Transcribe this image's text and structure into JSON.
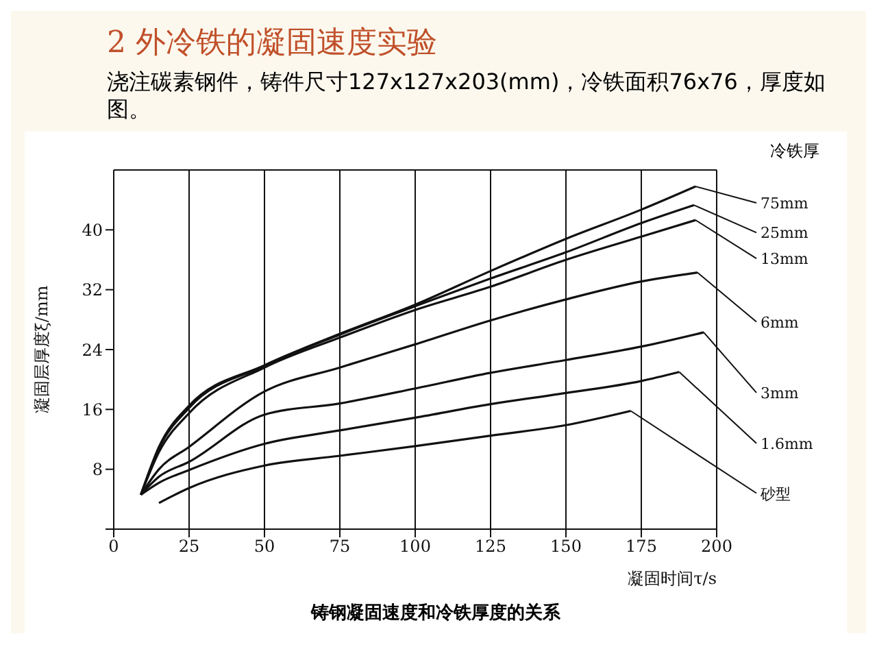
{
  "chart_data": {
    "type": "line",
    "title": "2 外冷铁的凝固速度实验",
    "subtitle": "浇注碳素钢件，铸件尺寸127x127x203(mm)，冷铁面积76x76，厚度如图。",
    "xlabel": "凝固时间τ/s",
    "ylabel": "凝固层厚度ξ/mm",
    "legend_title": "冷铁厚",
    "annotations": [
      "铸钢凝固速度和冷铁厚度的关系"
    ],
    "xlim": [
      0,
      200
    ],
    "ylim": [
      0,
      48
    ],
    "xticks": [
      0,
      25,
      50,
      75,
      100,
      125,
      150,
      175,
      200
    ],
    "yticks": [
      {
        "value": 0,
        "label": null
      },
      8,
      16,
      24,
      32,
      40
    ],
    "legend": "right",
    "grid": true,
    "marker": "none",
    "line_style": "solid",
    "series": [
      {
        "name": "75mm",
        "color": "#111111",
        "x": [
          9,
          15,
          25,
          50,
          75,
          100,
          125,
          150,
          175,
          193
        ],
        "values": [
          4.6,
          11,
          16.5,
          21.9,
          26.1,
          30,
          34.5,
          38.8,
          42.7,
          45.8
        ]
      },
      {
        "name": "25mm",
        "color": "#111111",
        "x": [
          9,
          15,
          25,
          50,
          75,
          100,
          125,
          150,
          175,
          192.5
        ],
        "values": [
          4.6,
          10.8,
          16.2,
          21.8,
          26,
          29.8,
          33.5,
          37,
          40.9,
          43.3
        ]
      },
      {
        "name": "13mm",
        "color": "#111111",
        "x": [
          9,
          15,
          25,
          50,
          75,
          100,
          125,
          150,
          175,
          193
        ],
        "values": [
          4.6,
          10.3,
          15.5,
          21.6,
          25.6,
          29.3,
          32.4,
          36,
          39.1,
          41.3
        ]
      },
      {
        "name": "6mm",
        "color": "#111111",
        "x": [
          9,
          15,
          25,
          50,
          75,
          100,
          125,
          150,
          175,
          193.6
        ],
        "values": [
          4.6,
          8,
          11,
          18.4,
          21.6,
          24.7,
          27.9,
          30.7,
          33.1,
          34.3
        ]
      },
      {
        "name": "3mm",
        "color": "#111111",
        "x": [
          9,
          15,
          25,
          50,
          75,
          100,
          125,
          150,
          175,
          195.7
        ],
        "values": [
          4.6,
          7,
          9,
          15.3,
          16.8,
          18.8,
          20.9,
          22.6,
          24.4,
          26.3
        ]
      },
      {
        "name": "1.6mm",
        "color": "#111111",
        "x": [
          9,
          15,
          25,
          50,
          75,
          100,
          125,
          150,
          175,
          187.6
        ],
        "values": [
          4.6,
          6.2,
          7.9,
          11.4,
          13.2,
          14.9,
          16.7,
          18.2,
          19.8,
          21
        ]
      },
      {
        "name": "砂型",
        "color": "#111111",
        "x": [
          15,
          25,
          50,
          75,
          100,
          125,
          150,
          171.5
        ],
        "values": [
          3.5,
          5.5,
          8.5,
          9.8,
          11.1,
          12.5,
          13.9,
          15.8
        ]
      }
    ]
  }
}
